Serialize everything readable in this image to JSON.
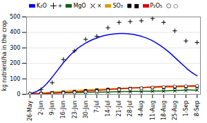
{
  "chart_data": {
    "type": "line",
    "ylabel": "kg nutrient/ha in the crop",
    "xlim": [
      -0.3,
      15.3
    ],
    "xticks": [
      {
        "value": 0,
        "label": "26-May"
      },
      {
        "value": 1,
        "label": "2-Jun"
      },
      {
        "value": 2,
        "label": "9-Jun"
      },
      {
        "value": 3,
        "label": "16-Jun"
      },
      {
        "value": 4,
        "label": "23-Jun"
      },
      {
        "value": 5,
        "label": "30-Jun"
      },
      {
        "value": 6,
        "label": "7-Jul"
      },
      {
        "value": 7,
        "label": "14-Jul"
      },
      {
        "value": 8,
        "label": "21-Jul"
      },
      {
        "value": 9,
        "label": "28-Jul"
      },
      {
        "value": 10,
        "label": "4-Aug"
      },
      {
        "value": 11,
        "label": "11-Aug"
      },
      {
        "value": 12,
        "label": "18-Aug"
      },
      {
        "value": 13,
        "label": "25-Aug"
      },
      {
        "value": 14,
        "label": "1-Sep"
      },
      {
        "value": 15,
        "label": "8-Sep"
      }
    ],
    "ylim": [
      0,
      500
    ],
    "yticks": [
      0,
      100,
      200,
      300,
      400,
      500
    ],
    "grid": true,
    "legend": "top",
    "series": [
      {
        "name": "K₂O",
        "type": "line",
        "color": "#0000EE",
        "x": [
          0,
          0.3,
          0.6,
          0.9,
          1.2,
          1.5,
          1.8,
          2.1,
          2.4,
          2.7,
          3.0,
          3.3,
          3.6,
          3.9,
          4.2,
          4.5,
          4.8,
          5.1,
          5.4,
          5.7,
          6.0,
          6.3,
          6.6,
          6.9,
          7.2,
          7.5,
          7.8,
          8.1,
          8.4,
          8.7,
          9.0,
          9.3,
          9.6,
          9.9,
          10.2,
          10.5,
          10.8,
          11.1,
          11.4,
          11.7,
          12.0,
          12.3,
          12.6,
          12.9,
          13.2,
          13.5,
          13.8,
          14.1,
          14.4,
          14.7,
          15.0
        ],
        "values": [
          5,
          10,
          18,
          30,
          47,
          68,
          93,
          120,
          148,
          176,
          204,
          228,
          252,
          272,
          292,
          308,
          322,
          335,
          346,
          356,
          364,
          372,
          378,
          383,
          387,
          390,
          392,
          393,
          393,
          392,
          390,
          387,
          382,
          377,
          370,
          362,
          353,
          342,
          329,
          315,
          300,
          283,
          265,
          245,
          225,
          205,
          185,
          165,
          148,
          132,
          120
        ]
      },
      {
        "name": "+",
        "type": "scatter",
        "color": "black",
        "marker": "plus",
        "x": [
          0,
          1,
          2,
          3,
          4,
          5,
          6,
          7,
          8,
          9,
          10,
          11,
          12,
          13,
          14,
          15
        ],
        "values": [
          5,
          30,
          75,
          225,
          280,
          355,
          375,
          430,
          465,
          470,
          475,
          490,
          465,
          410,
          345,
          335
        ]
      },
      {
        "name": "MgO",
        "type": "line",
        "color": "#006400",
        "x": [
          0,
          0.3,
          0.6,
          0.9,
          1.2,
          1.5,
          1.8,
          2.1,
          2.4,
          2.7,
          3.0,
          3.3,
          3.6,
          3.9,
          4.2,
          4.5,
          4.8,
          5.1,
          5.4,
          5.7,
          6.0,
          6.3,
          6.6,
          6.9,
          7.2,
          7.5,
          7.8,
          8.1,
          8.4,
          8.7,
          9.0,
          9.3,
          9.6,
          9.9,
          10.2,
          10.5,
          10.8,
          11.1,
          11.4,
          11.7,
          12.0,
          12.3,
          12.6,
          12.9,
          13.2,
          13.5,
          13.8,
          14.1,
          14.4,
          14.7,
          15.0
        ],
        "values": [
          2,
          3,
          4,
          5,
          6,
          7,
          7,
          8,
          8,
          9,
          9,
          10,
          10,
          11,
          11,
          12,
          12,
          13,
          13,
          14,
          14,
          15,
          15,
          16,
          16,
          17,
          17,
          17,
          18,
          18,
          18,
          19,
          19,
          19,
          20,
          20,
          20,
          21,
          21,
          21,
          22,
          22,
          23,
          24,
          25,
          26,
          27,
          28,
          28,
          27,
          27
        ]
      },
      {
        "name": "×",
        "type": "scatter",
        "color": "black",
        "marker": "times",
        "x": [
          0,
          1,
          2,
          3,
          4,
          5,
          6,
          7,
          8,
          9,
          10,
          11,
          12,
          13,
          14,
          15
        ],
        "values": [
          2,
          5,
          7,
          8,
          9,
          11,
          13,
          14,
          15,
          16,
          17,
          19,
          20,
          22,
          24,
          27
        ]
      },
      {
        "name": "SO₃",
        "type": "line",
        "color": "#DAA000",
        "x": [
          0,
          0.3,
          0.6,
          0.9,
          1.2,
          1.5,
          1.8,
          2.1,
          2.4,
          2.7,
          3.0,
          3.3,
          3.6,
          3.9,
          4.2,
          4.5,
          4.8,
          5.1,
          5.4,
          5.7,
          6.0,
          6.3,
          6.6,
          6.9,
          7.2,
          7.5,
          7.8,
          8.1,
          8.4,
          8.7,
          9.0,
          9.3,
          9.6,
          9.9,
          10.2,
          10.5,
          10.8,
          11.1,
          11.4,
          11.7,
          12.0,
          12.3,
          12.6,
          12.9,
          13.2,
          13.5,
          13.8,
          14.1,
          14.4,
          14.7,
          15.0
        ],
        "values": [
          2,
          3,
          5,
          7,
          9,
          11,
          13,
          15,
          17,
          18,
          20,
          21,
          23,
          24,
          25,
          27,
          28,
          29,
          30,
          31,
          32,
          33,
          34,
          35,
          36,
          37,
          38,
          39,
          40,
          40,
          41,
          41,
          42,
          42,
          43,
          43,
          44,
          44,
          45,
          45,
          46,
          46,
          47,
          47,
          48,
          48,
          49,
          49,
          50,
          50,
          50
        ]
      },
      {
        "name": "■",
        "type": "scatter",
        "color": "black",
        "marker": "square",
        "x": [
          0,
          1,
          2,
          3,
          4,
          5,
          6,
          7,
          8,
          9,
          10,
          11,
          12,
          13,
          14,
          15
        ],
        "values": [
          2,
          6,
          10,
          14,
          18,
          24,
          28,
          32,
          35,
          38,
          40,
          42,
          43,
          45,
          48,
          50
        ]
      },
      {
        "name": "P₂O₅",
        "type": "line",
        "color": "#DD0000",
        "x": [
          0,
          0.3,
          0.6,
          0.9,
          1.2,
          1.5,
          1.8,
          2.1,
          2.4,
          2.7,
          3.0,
          3.3,
          3.6,
          3.9,
          4.2,
          4.5,
          4.8,
          5.1,
          5.4,
          5.7,
          6.0,
          6.3,
          6.6,
          6.9,
          7.2,
          7.5,
          7.8,
          8.1,
          8.4,
          8.7,
          9.0,
          9.3,
          9.6,
          9.9,
          10.2,
          10.5,
          10.8,
          11.1,
          11.4,
          11.7,
          12.0,
          12.3,
          12.6,
          12.9,
          13.2,
          13.5,
          13.8,
          14.1,
          14.4,
          14.7,
          15.0
        ],
        "values": [
          2,
          3,
          4,
          5,
          6,
          7,
          8,
          9,
          10,
          11,
          12,
          13,
          14,
          16,
          17,
          18,
          20,
          21,
          23,
          24,
          26,
          27,
          28,
          30,
          31,
          33,
          34,
          35,
          37,
          38,
          40,
          41,
          42,
          43,
          44,
          46,
          47,
          48,
          49,
          50,
          51,
          52,
          52,
          53,
          53,
          54,
          54,
          54,
          55,
          55,
          55
        ]
      },
      {
        "name": "○",
        "type": "scatter",
        "color": "white",
        "marker": "circle",
        "x": [
          0,
          1,
          2,
          3,
          4,
          5,
          6,
          7,
          8,
          9,
          10,
          11,
          12,
          13,
          14,
          15
        ],
        "values": [
          2,
          4,
          6,
          9,
          12,
          16,
          20,
          25,
          30,
          35,
          40,
          44,
          48,
          51,
          53,
          55
        ]
      }
    ]
  }
}
